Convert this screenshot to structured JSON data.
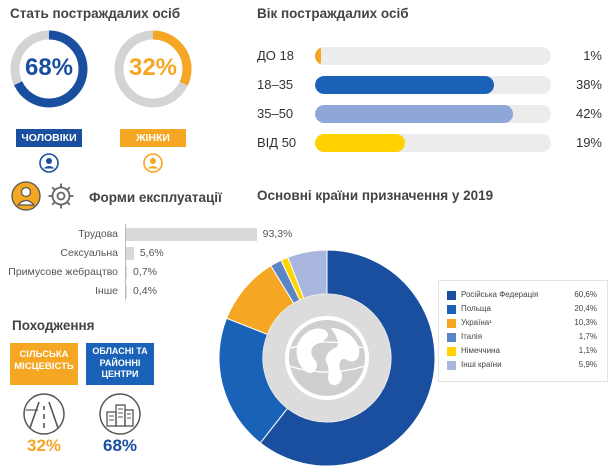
{
  "colors": {
    "blue": "#1a4fa0",
    "orange": "#f5a623",
    "light_blue": "#8fa6d8",
    "yellow": "#ffd200",
    "grey_track": "#d4d4d4"
  },
  "gender": {
    "title": "Стать постраждалих осіб",
    "men": {
      "pct": "68%",
      "label": "ЧОЛОВІКИ",
      "icon": "male-person-icon"
    },
    "women": {
      "pct": "32%",
      "label": "ЖІНКИ",
      "icon": "female-person-icon"
    }
  },
  "age": {
    "title": "Вік постраждалих осіб",
    "rows": [
      {
        "label": "ДО 18",
        "pct": "1%",
        "color": "#f5a623"
      },
      {
        "label": "18–35",
        "pct": "38%",
        "color": "#1a62b8"
      },
      {
        "label": "35–50",
        "pct": "42%",
        "color": "#8fa6d8"
      },
      {
        "label": "ВІД 50",
        "pct": "19%",
        "color": "#ffd200"
      }
    ]
  },
  "exploitation": {
    "title": "Форми експлуатації",
    "icons": [
      "person-icon",
      "gear-icon"
    ],
    "rows": [
      {
        "label": "Трудова",
        "value": "93,3%"
      },
      {
        "label": "Сексуальна",
        "value": "5,6%"
      },
      {
        "label": "Примусове жебрацтво",
        "value": "0,7%"
      },
      {
        "label": "Інше",
        "value": "0,4%"
      }
    ]
  },
  "origin": {
    "title": "Походження",
    "rural": {
      "label": "СІЛЬСЬКА МІСЦЕВІСТЬ",
      "pct": "32%",
      "icon": "road-icon"
    },
    "urban": {
      "label": "ОБЛАСНІ ТА РАЙОННІ ЦЕНТРИ",
      "pct": "68%",
      "icon": "city-icon"
    }
  },
  "destinations": {
    "title": "Основні країни призначення у 2019",
    "center_icon": "globe-icon",
    "legend": [
      {
        "label": "Російська Федерація",
        "value": "60,6%",
        "color": "#1a4fa0"
      },
      {
        "label": "Польща",
        "value": "20,4%",
        "color": "#1a62b8"
      },
      {
        "label": "Україна¹",
        "value": "10,3%",
        "color": "#f5a623"
      },
      {
        "label": "Італія",
        "value": "1,7%",
        "color": "#5b86c6"
      },
      {
        "label": "Німеччина",
        "value": "1,1%",
        "color": "#ffd200"
      },
      {
        "label": "Інші країни",
        "value": "5,9%",
        "color": "#a9b7df"
      }
    ]
  },
  "chart_data": [
    {
      "type": "pie",
      "categories": [
        "ЧОЛОВІКИ",
        "ЖІНКИ"
      ],
      "values": [
        68,
        32
      ],
      "title": "Стать постраждалих осіб"
    },
    {
      "type": "bar",
      "title": "Вік постраждалих осіб",
      "categories": [
        "ДО 18",
        "18–35",
        "35–50",
        "ВІД 50"
      ],
      "values": [
        1,
        38,
        42,
        19
      ]
    },
    {
      "type": "bar",
      "title": "Форми експлуатації",
      "categories": [
        "Трудова",
        "Сексуальна",
        "Примусове жебрацтво",
        "Інше"
      ],
      "values": [
        93.3,
        5.6,
        0.7,
        0.4
      ]
    },
    {
      "type": "pie",
      "title": "Походження",
      "categories": [
        "СІЛЬСЬКА МІСЦЕВІСТЬ",
        "ОБЛАСНІ ТА РАЙОННІ ЦЕНТРИ"
      ],
      "values": [
        32,
        68
      ]
    },
    {
      "type": "pie",
      "title": "Основні країни призначення у 2019",
      "categories": [
        "Російська Федерація",
        "Польща",
        "Україна¹",
        "Італія",
        "Німеччина",
        "Інші країни"
      ],
      "values": [
        60.6,
        20.4,
        10.3,
        1.7,
        1.1,
        5.9
      ]
    }
  ]
}
